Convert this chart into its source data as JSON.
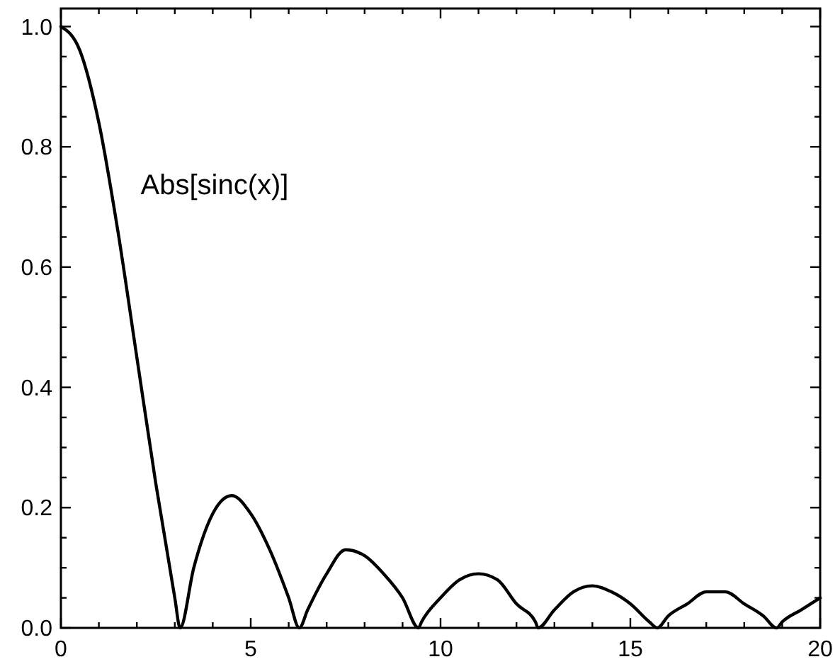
{
  "chart_data": {
    "type": "line",
    "xlim": [
      0,
      20
    ],
    "ylim": [
      0,
      1.03
    ],
    "xticks": [
      0,
      {
        "value": 1,
        "label": null
      },
      {
        "value": 2,
        "label": null
      },
      {
        "value": 3,
        "label": null
      },
      {
        "value": 4,
        "label": null
      },
      5,
      {
        "value": 6,
        "label": null
      },
      {
        "value": 7,
        "label": null
      },
      {
        "value": 8,
        "label": null
      },
      {
        "value": 9,
        "label": null
      },
      10,
      {
        "value": 11,
        "label": null
      },
      {
        "value": 12,
        "label": null
      },
      {
        "value": 13,
        "label": null
      },
      {
        "value": 14,
        "label": null
      },
      15,
      {
        "value": 16,
        "label": null
      },
      {
        "value": 17,
        "label": null
      },
      {
        "value": 18,
        "label": null
      },
      {
        "value": 19,
        "label": null
      },
      20
    ],
    "yticks": [
      {
        "value": 0,
        "label": "0.0"
      },
      {
        "value": 0.05,
        "label": null
      },
      {
        "value": 0.1,
        "label": null
      },
      {
        "value": 0.15,
        "label": null
      },
      {
        "value": 0.2,
        "label": "0.2"
      },
      {
        "value": 0.25,
        "label": null
      },
      {
        "value": 0.3,
        "label": null
      },
      {
        "value": 0.35,
        "label": null
      },
      {
        "value": 0.4,
        "label": "0.4"
      },
      {
        "value": 0.45,
        "label": null
      },
      {
        "value": 0.5,
        "label": null
      },
      {
        "value": 0.55,
        "label": null
      },
      {
        "value": 0.6,
        "label": "0.6"
      },
      {
        "value": 0.65,
        "label": null
      },
      {
        "value": 0.7,
        "label": null
      },
      {
        "value": 0.75,
        "label": null
      },
      {
        "value": 0.8,
        "label": "0.8"
      },
      {
        "value": 0.85,
        "label": null
      },
      {
        "value": 0.9,
        "label": null
      },
      {
        "value": 0.95,
        "label": null
      },
      {
        "value": 1,
        "label": "1.0"
      }
    ],
    "grid": false,
    "legend": false,
    "marker": "none",
    "line_style": "solid",
    "series": [
      {
        "name": "Abs[sinc(x)]",
        "color": "#000000",
        "x": [
          0,
          0.5,
          1,
          1.5,
          2,
          2.5,
          3,
          3.14,
          3.5,
          4,
          4.5,
          5,
          5.5,
          6,
          6.28,
          6.5,
          7,
          7.5,
          8,
          8.5,
          9,
          9.42,
          9.5,
          10,
          10.5,
          11,
          11.5,
          12,
          12.5,
          12.57,
          13,
          13.5,
          14,
          14.5,
          15,
          15.5,
          15.71,
          16,
          16.5,
          17,
          17.5,
          18,
          18.5,
          18.85,
          19,
          19.5,
          20
        ],
        "values": [
          1,
          0.96,
          0.84,
          0.66,
          0.45,
          0.24,
          0.05,
          0,
          0.1,
          0.19,
          0.22,
          0.19,
          0.13,
          0.05,
          0,
          0.03,
          0.09,
          0.13,
          0.12,
          0.09,
          0.05,
          0,
          0.01,
          0.05,
          0.08,
          0.09,
          0.08,
          0.04,
          0.01,
          0,
          0.03,
          0.06,
          0.07,
          0.06,
          0.04,
          0.01,
          0,
          0.02,
          0.04,
          0.06,
          0.06,
          0.04,
          0.02,
          0,
          0.01,
          0.03,
          0.05
        ]
      }
    ]
  }
}
